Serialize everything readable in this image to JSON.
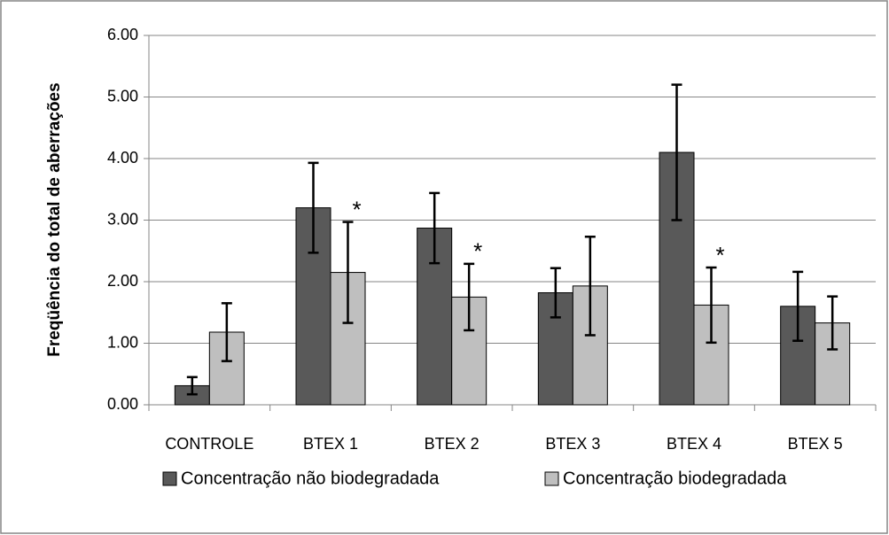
{
  "chart_data": {
    "type": "bar",
    "y_label": "Freqüência do total de aberrações",
    "categories": [
      "CONTROLE",
      "BTEX 1",
      "BTEX 2",
      "BTEX 3",
      "BTEX 4",
      "BTEX 5"
    ],
    "series": [
      {
        "name": "Concentração não biodegradada",
        "color": "#595959",
        "values": [
          0.31,
          3.2,
          2.87,
          1.82,
          4.1,
          1.6
        ],
        "errors": [
          0.14,
          0.73,
          0.57,
          0.4,
          1.1,
          0.56
        ]
      },
      {
        "name": "Concentração biodegradada",
        "color": "#bfbfbf",
        "values": [
          1.18,
          2.15,
          1.75,
          1.93,
          1.62,
          1.33
        ],
        "errors": [
          0.47,
          0.82,
          0.54,
          0.8,
          0.61,
          0.43
        ]
      }
    ],
    "annotations": [
      {
        "text": "*",
        "category": "BTEX 1",
        "series": "Concentração biodegradada"
      },
      {
        "text": "*",
        "category": "BTEX 2",
        "series": "Concentração biodegradada"
      },
      {
        "text": "*",
        "category": "BTEX 4",
        "series": "Concentração biodegradada"
      }
    ],
    "ylim": [
      0,
      6
    ],
    "yticks": [
      {
        "value": 0,
        "label": "0.00"
      },
      {
        "value": 1,
        "label": "1.00"
      },
      {
        "value": 2,
        "label": "2.00"
      },
      {
        "value": 3,
        "label": "3.00"
      },
      {
        "value": 4,
        "label": "4.00"
      },
      {
        "value": 5,
        "label": "5.00"
      },
      {
        "value": 6,
        "label": "6.00"
      }
    ],
    "grid": true,
    "legend": "bottom"
  }
}
